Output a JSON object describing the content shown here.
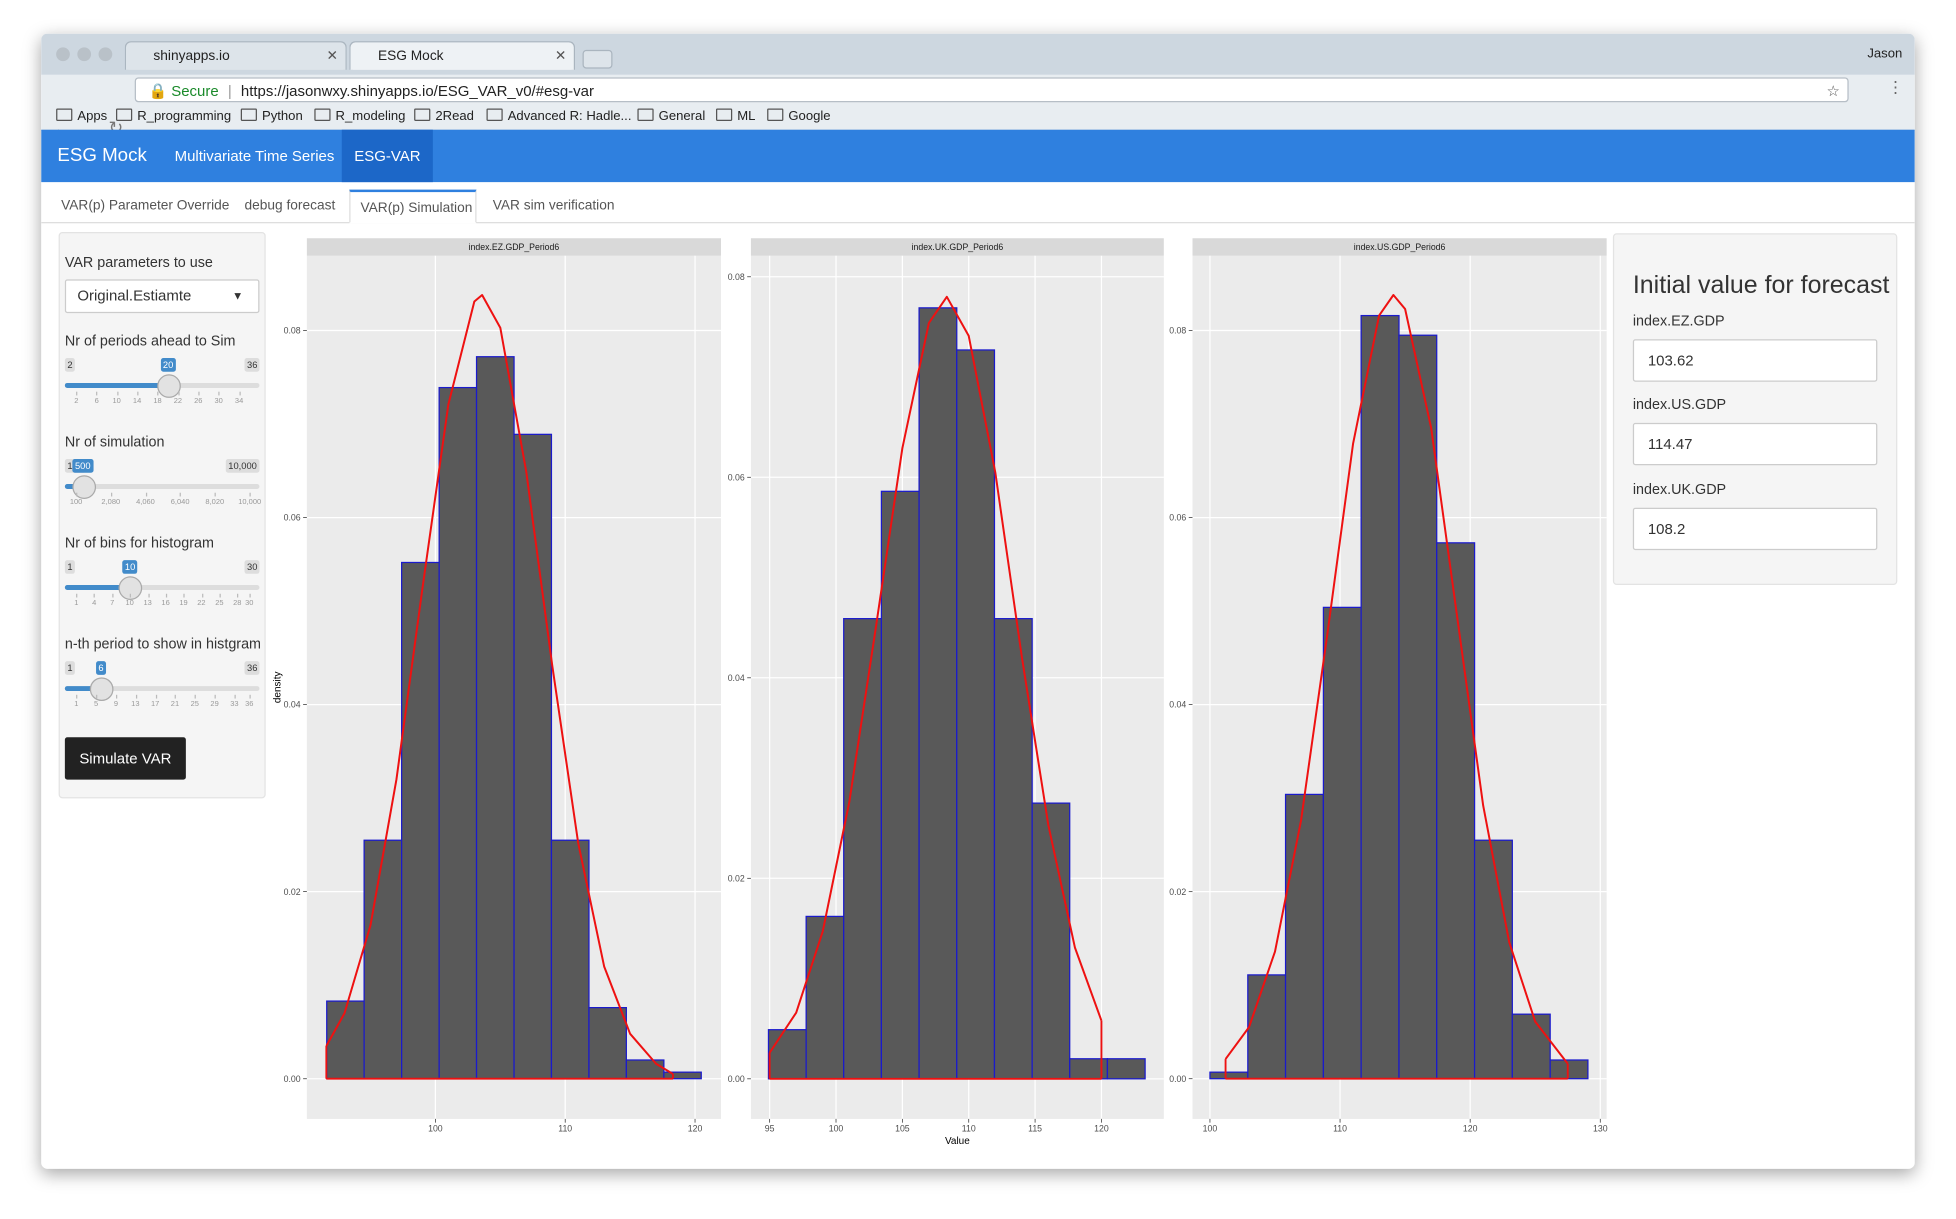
{
  "browser": {
    "tabs": [
      "shinyapps.io",
      "ESG Mock"
    ],
    "user": "Jason",
    "secure": "Secure",
    "url": "https://jasonwxy.shinyapps.io/ESG_VAR_v0/#esg-var",
    "bookmarks": [
      "Apps",
      "R_programming",
      "Python",
      "R_modeling",
      "2Read",
      "Advanced R: Hadle...",
      "General",
      "ML",
      "Google"
    ]
  },
  "navbar": {
    "brand": "ESG Mock",
    "items": [
      "Multivariate Time Series",
      "ESG-VAR"
    ],
    "active": 1
  },
  "tabs": {
    "items": [
      "VAR(p) Parameter Override",
      "debug forecast",
      "VAR(p) Simulation",
      "VAR sim verification"
    ],
    "active": 2
  },
  "sidebar": {
    "select_label": "VAR parameters to use",
    "select_value": "Original.Estiamte",
    "sliders": [
      {
        "label": "Nr of periods ahead to Sim",
        "min": 2,
        "max": 36,
        "value": 20,
        "ticks": [
          2,
          6,
          10,
          14,
          18,
          22,
          26,
          30,
          34
        ]
      },
      {
        "label": "Nr of simulation",
        "min": 100,
        "max": {
          "value": 10000,
          "label": "10,000"
        },
        "value": 500,
        "ticks": [
          100,
          {
            "value": 2080,
            "label": "2,080"
          },
          {
            "value": 4060,
            "label": "4,060"
          },
          {
            "value": 6040,
            "label": "6,040"
          },
          {
            "value": 8020,
            "label": "8,020"
          },
          {
            "value": 10000,
            "label": "10,000"
          }
        ]
      },
      {
        "label": "Nr of bins for histogram",
        "min": 1,
        "max": 30,
        "value": 10,
        "ticks": [
          1,
          4,
          7,
          10,
          13,
          16,
          19,
          22,
          25,
          28,
          30
        ]
      },
      {
        "label": "n-th period to show in histgram",
        "min": 1,
        "max": 36,
        "value": 6,
        "ticks": [
          1,
          5,
          9,
          13,
          17,
          21,
          25,
          29,
          33,
          36
        ]
      }
    ],
    "button": "Simulate VAR"
  },
  "chart_data": [
    {
      "type": "histogram",
      "title": "index.EZ.GDP_Period6",
      "ylabel": "density",
      "bins": [
        91.63,
        94.51,
        97.4,
        100.29,
        103.17,
        106.06,
        108.94,
        111.83,
        114.71,
        117.6,
        120.48
      ],
      "values": [
        0.0083,
        0.0255,
        0.0552,
        0.0739,
        0.0772,
        0.0689,
        0.0255,
        0.0076,
        0.002,
        0.0007
      ],
      "color": "#595959",
      "edgecolor": "#1a1acc",
      "curve": {
        "x": [
          91.6,
          93,
          95,
          97,
          99,
          101,
          103,
          103.6,
          105,
          107,
          109,
          111,
          113,
          115,
          117,
          118.3
        ],
        "values": [
          0.0035,
          0.007,
          0.0164,
          0.032,
          0.0524,
          0.0721,
          0.0831,
          0.0838,
          0.0803,
          0.0649,
          0.0442,
          0.0252,
          0.012,
          0.0048,
          0.0016,
          0.0005
        ],
        "color": "#ee1111"
      },
      "xlim": [
        90.1,
        122.0
      ],
      "ylim": [
        -0.0043,
        0.088
      ],
      "xticks": [
        100,
        110,
        120
      ],
      "yticks": [
        {
          "value": 0,
          "label": "0.00"
        },
        0.02,
        0.04,
        0.06,
        0.08
      ],
      "grid": true
    },
    {
      "type": "histogram",
      "title": "index.UK.GDP_Period6",
      "xlabel": "Value",
      "bins": [
        94.91,
        97.75,
        100.58,
        103.42,
        106.26,
        109.1,
        111.94,
        114.78,
        117.61,
        120.45,
        123.29
      ],
      "values": [
        0.0049,
        0.0162,
        0.0459,
        0.0586,
        0.0769,
        0.0727,
        0.0459,
        0.0275,
        0.002,
        0.002
      ],
      "color": "#595959",
      "edgecolor": "#1a1acc",
      "curve": {
        "x": [
          95,
          97,
          99,
          101,
          103,
          105,
          107,
          108.35,
          110,
          112,
          114,
          116,
          118,
          120
        ],
        "values": [
          0.0026,
          0.0066,
          0.0147,
          0.0276,
          0.045,
          0.0629,
          0.0754,
          0.078,
          0.0741,
          0.0605,
          0.0421,
          0.0253,
          0.0131,
          0.0058
        ],
        "color": "#ee1111"
      },
      "xlim": [
        93.59,
        124.7
      ],
      "ylim": [
        -0.004,
        0.0821
      ],
      "xticks": [
        95,
        100,
        105,
        110,
        115,
        120
      ],
      "yticks": [
        {
          "value": 0,
          "label": "0.00"
        },
        0.02,
        0.04,
        0.06,
        0.08
      ],
      "grid": true
    },
    {
      "type": "histogram",
      "title": "index.US.GDP_Period6",
      "bins": [
        100.0,
        102.91,
        105.81,
        108.72,
        111.62,
        114.53,
        117.43,
        120.34,
        123.24,
        126.15,
        129.05
      ],
      "values": [
        0.0007,
        0.0111,
        0.0304,
        0.0504,
        0.0816,
        0.0795,
        0.0573,
        0.0255,
        0.0069,
        0.002
      ],
      "color": "#595959",
      "edgecolor": "#1a1acc",
      "curve": {
        "x": [
          101.2,
          103,
          105,
          107,
          109,
          111,
          113,
          114.1,
          115,
          117,
          119,
          121,
          123,
          125,
          127.5
        ],
        "values": [
          0.0021,
          0.0055,
          0.0136,
          0.0276,
          0.0473,
          0.0679,
          0.0816,
          0.0838,
          0.0823,
          0.0696,
          0.0494,
          0.0292,
          0.0146,
          0.0061,
          0.0016
        ],
        "color": "#ee1111"
      },
      "xlim": [
        98.66,
        130.49
      ],
      "ylim": [
        -0.0043,
        0.088
      ],
      "xticks": [
        100,
        110,
        120,
        130
      ],
      "yticks": [
        {
          "value": 0,
          "label": "0.00"
        },
        0.02,
        0.04,
        0.06,
        0.08
      ],
      "grid": true
    }
  ],
  "forecast": {
    "title": "Initial value for forecast",
    "fields": [
      {
        "label": "index.EZ.GDP",
        "value": 103.62
      },
      {
        "label": "index.US.GDP",
        "value": 114.47
      },
      {
        "label": "index.UK.GDP",
        "value": 108.2
      }
    ]
  }
}
